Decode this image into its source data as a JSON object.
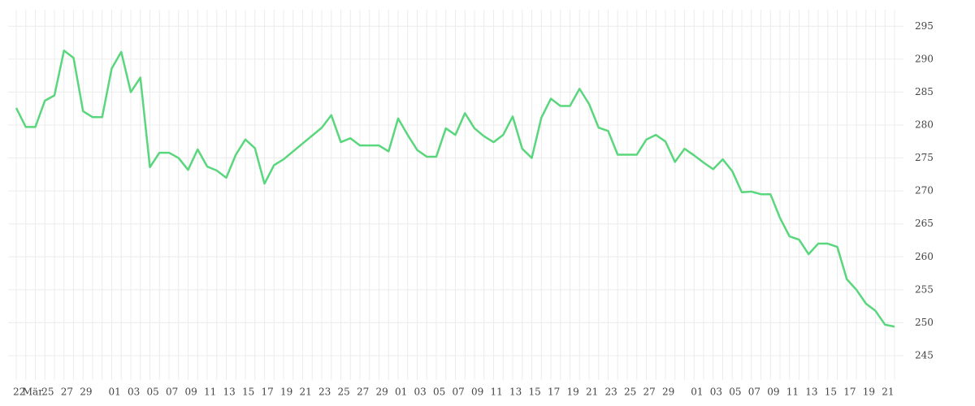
{
  "chart_data": {
    "type": "line",
    "categories": [
      "22",
      "Mär",
      null,
      "25",
      null,
      "27",
      null,
      "29",
      null,
      null,
      "01",
      null,
      "03",
      null,
      "05",
      null,
      "07",
      null,
      "09",
      null,
      "11",
      null,
      "13",
      null,
      "15",
      null,
      "17",
      null,
      "19",
      null,
      "21",
      null,
      "23",
      null,
      "25",
      null,
      "27",
      null,
      "29",
      null,
      "01",
      null,
      "03",
      null,
      "05",
      null,
      "07",
      null,
      "09",
      null,
      "11",
      null,
      "13",
      null,
      "15",
      null,
      "17",
      null,
      "19",
      null,
      "21",
      null,
      "23",
      null,
      "25",
      null,
      "27",
      null,
      "29",
      null,
      null,
      "01",
      null,
      "03",
      null,
      "05",
      null,
      "07",
      null,
      "09",
      null,
      "11",
      null,
      "13",
      null,
      "15",
      null,
      "17",
      null,
      "19",
      null,
      "21",
      null
    ],
    "series": [
      {
        "color": "#5ad67d",
        "values": [
          282.6,
          279.7,
          279.7,
          283.7,
          284.5,
          291.3,
          290.2,
          282.1,
          281.2,
          281.2,
          288.6,
          291.1,
          285.0,
          287.2,
          273.6,
          275.8,
          275.8,
          275.0,
          273.2,
          276.3,
          273.7,
          273.1,
          272.0,
          275.5,
          277.8,
          276.5,
          271.1,
          273.9,
          274.8,
          276.0,
          277.2,
          278.4,
          279.6,
          281.5,
          277.4,
          278.0,
          276.9,
          276.9,
          276.9,
          276.0,
          281.0,
          278.5,
          276.2,
          275.2,
          275.2,
          279.5,
          278.5,
          281.8,
          279.5,
          278.3,
          277.4,
          278.5,
          281.3,
          276.4,
          275.0,
          281.1,
          284.0,
          282.9,
          282.9,
          285.5,
          283.2,
          279.6,
          279.1,
          275.5,
          275.5,
          275.5,
          277.8,
          278.5,
          277.5,
          274.4,
          276.4,
          275.4,
          274.3,
          273.3,
          274.8,
          273.0,
          269.8,
          269.9,
          269.5,
          269.5,
          265.9,
          263.1,
          262.6,
          260.4,
          262.0,
          262.0,
          261.5,
          256.6,
          255.0,
          252.9,
          251.8,
          249.7,
          249.4
        ]
      }
    ],
    "ylim": [
      241.3,
      297.5
    ],
    "yticks": [
      245,
      250,
      255,
      260,
      265,
      270,
      275,
      280,
      285,
      290,
      295
    ],
    "grid": true
  }
}
